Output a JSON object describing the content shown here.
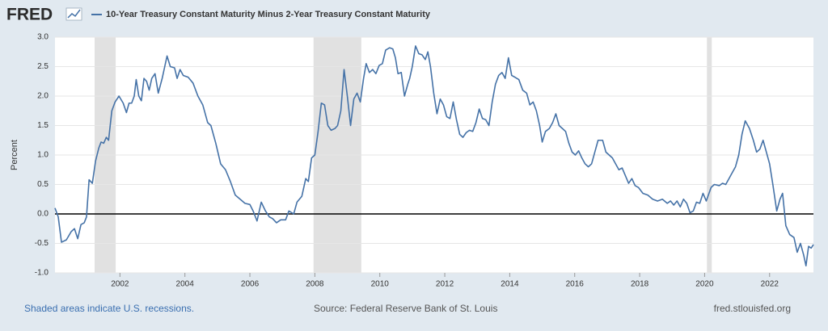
{
  "chart_data": {
    "type": "line",
    "logo": "FRED",
    "ylabel": "Percent",
    "footnote": "Shaded areas indicate U.S. recessions.",
    "source": "Source: Federal Reserve Bank of St. Louis",
    "website": "fred.stlouisfed.org",
    "xlim": [
      2000,
      2023.35
    ],
    "xticks": [
      2002,
      2004,
      2006,
      2008,
      2010,
      2012,
      2014,
      2016,
      2018,
      2020,
      2022
    ],
    "ylim": [
      -1,
      3
    ],
    "yticks": [
      {
        "value": 3,
        "label": "3.0"
      },
      2.5,
      {
        "value": 2,
        "label": "2.0"
      },
      1.5,
      {
        "value": 1,
        "label": "1.0"
      },
      0.5,
      {
        "value": 0,
        "label": "0.0"
      },
      -0.5,
      {
        "value": -1,
        "label": "-1.0"
      }
    ],
    "grid": true,
    "recessions": [
      [
        2001.22,
        2001.87
      ],
      [
        2007.96,
        2009.43
      ],
      [
        2020.07,
        2020.22
      ]
    ],
    "x": [
      2000.0,
      2000.1,
      2000.2,
      2000.35,
      2000.5,
      2000.6,
      2000.7,
      2000.8,
      2000.9,
      2000.97,
      2001.05,
      2001.15,
      2001.25,
      2001.35,
      2001.42,
      2001.5,
      2001.58,
      2001.65,
      2001.75,
      2001.85,
      2001.97,
      2002.1,
      2002.2,
      2002.28,
      2002.36,
      2002.44,
      2002.5,
      2002.58,
      2002.66,
      2002.74,
      2002.82,
      2002.9,
      2002.98,
      2003.08,
      2003.18,
      2003.3,
      2003.45,
      2003.55,
      2003.68,
      2003.76,
      2003.85,
      2003.95,
      2004.1,
      2004.25,
      2004.4,
      2004.55,
      2004.7,
      2004.8,
      2004.95,
      2005.1,
      2005.25,
      2005.4,
      2005.55,
      2005.7,
      2005.85,
      2006.0,
      2006.1,
      2006.22,
      2006.35,
      2006.48,
      2006.6,
      2006.7,
      2006.82,
      2006.95,
      2007.1,
      2007.2,
      2007.35,
      2007.45,
      2007.6,
      2007.72,
      2007.8,
      2007.9,
      2008.0,
      2008.1,
      2008.2,
      2008.3,
      2008.4,
      2008.5,
      2008.62,
      2008.7,
      2008.8,
      2008.9,
      2009.0,
      2009.1,
      2009.2,
      2009.3,
      2009.4,
      2009.5,
      2009.58,
      2009.68,
      2009.78,
      2009.88,
      2009.98,
      2010.08,
      2010.18,
      2010.3,
      2010.4,
      2010.48,
      2010.56,
      2010.66,
      2010.76,
      2010.86,
      2010.92,
      2011.0,
      2011.1,
      2011.2,
      2011.3,
      2011.4,
      2011.48,
      2011.56,
      2011.66,
      2011.76,
      2011.86,
      2011.96,
      2012.06,
      2012.16,
      2012.26,
      2012.36,
      2012.46,
      2012.56,
      2012.66,
      2012.76,
      2012.86,
      2012.96,
      2013.06,
      2013.16,
      2013.26,
      2013.36,
      2013.46,
      2013.56,
      2013.66,
      2013.76,
      2013.86,
      2013.96,
      2014.06,
      2014.16,
      2014.28,
      2014.4,
      2014.52,
      2014.62,
      2014.72,
      2014.82,
      2014.92,
      2015.0,
      2015.1,
      2015.22,
      2015.32,
      2015.42,
      2015.52,
      2015.62,
      2015.72,
      2015.82,
      2015.92,
      2016.02,
      2016.12,
      2016.22,
      2016.32,
      2016.42,
      2016.52,
      2016.62,
      2016.72,
      2016.86,
      2016.96,
      2017.06,
      2017.16,
      2017.26,
      2017.36,
      2017.46,
      2017.56,
      2017.66,
      2017.76,
      2017.86,
      2017.96,
      2018.1,
      2018.25,
      2018.4,
      2018.55,
      2018.7,
      2018.85,
      2018.95,
      2019.05,
      2019.15,
      2019.25,
      2019.35,
      2019.45,
      2019.55,
      2019.65,
      2019.75,
      2019.85,
      2019.95,
      2020.05,
      2020.2,
      2020.3,
      2020.45,
      2020.55,
      2020.65,
      2020.75,
      2020.85,
      2020.95,
      2021.05,
      2021.15,
      2021.25,
      2021.38,
      2021.5,
      2021.6,
      2021.7,
      2021.8,
      2021.9,
      2022.0,
      2022.1,
      2022.22,
      2022.32,
      2022.4,
      2022.5,
      2022.62,
      2022.75,
      2022.85,
      2022.95,
      2023.05,
      2023.12,
      2023.2,
      2023.28,
      2023.35
    ],
    "series": [
      {
        "name": "10-Year Treasury Constant Maturity Minus 2-Year Treasury Constant Maturity",
        "color": "#4572a7",
        "values": [
          0.1,
          -0.05,
          -0.48,
          -0.44,
          -0.3,
          -0.25,
          -0.42,
          -0.18,
          -0.15,
          -0.05,
          0.58,
          0.52,
          0.9,
          1.12,
          1.22,
          1.2,
          1.3,
          1.25,
          1.75,
          1.9,
          2.0,
          1.88,
          1.72,
          1.88,
          1.88,
          2.0,
          2.28,
          2.0,
          1.92,
          2.3,
          2.25,
          2.1,
          2.3,
          2.38,
          2.05,
          2.3,
          2.68,
          2.5,
          2.48,
          2.3,
          2.45,
          2.35,
          2.32,
          2.22,
          2.0,
          1.85,
          1.55,
          1.5,
          1.2,
          0.85,
          0.75,
          0.55,
          0.32,
          0.25,
          0.18,
          0.16,
          0.05,
          -0.12,
          0.2,
          0.05,
          -0.05,
          -0.08,
          -0.15,
          -0.1,
          -0.1,
          0.05,
          0.0,
          0.2,
          0.3,
          0.6,
          0.55,
          0.95,
          1.0,
          1.4,
          1.88,
          1.85,
          1.5,
          1.42,
          1.45,
          1.5,
          1.75,
          2.45,
          2.0,
          1.5,
          1.95,
          2.05,
          1.9,
          2.3,
          2.55,
          2.4,
          2.45,
          2.38,
          2.52,
          2.55,
          2.78,
          2.82,
          2.8,
          2.65,
          2.38,
          2.4,
          2.0,
          2.2,
          2.3,
          2.5,
          2.85,
          2.72,
          2.7,
          2.62,
          2.75,
          2.5,
          2.05,
          1.7,
          1.95,
          1.85,
          1.65,
          1.62,
          1.9,
          1.6,
          1.35,
          1.3,
          1.38,
          1.42,
          1.4,
          1.55,
          1.78,
          1.62,
          1.6,
          1.5,
          1.9,
          2.2,
          2.35,
          2.4,
          2.3,
          2.65,
          2.35,
          2.32,
          2.28,
          2.1,
          2.05,
          1.85,
          1.9,
          1.75,
          1.5,
          1.22,
          1.4,
          1.45,
          1.55,
          1.7,
          1.5,
          1.45,
          1.4,
          1.2,
          1.05,
          1.0,
          1.07,
          0.95,
          0.85,
          0.8,
          0.85,
          1.05,
          1.25,
          1.25,
          1.05,
          1.0,
          0.95,
          0.85,
          0.75,
          0.78,
          0.65,
          0.52,
          0.6,
          0.48,
          0.45,
          0.35,
          0.32,
          0.25,
          0.22,
          0.25,
          0.18,
          0.22,
          0.15,
          0.22,
          0.12,
          0.25,
          0.18,
          0.02,
          0.05,
          0.2,
          0.18,
          0.35,
          0.22,
          0.45,
          0.5,
          0.48,
          0.52,
          0.5,
          0.6,
          0.7,
          0.8,
          1.0,
          1.35,
          1.58,
          1.45,
          1.25,
          1.05,
          1.1,
          1.25,
          1.05,
          0.85,
          0.5,
          0.05,
          0.25,
          0.35,
          -0.2,
          -0.35,
          -0.4,
          -0.65,
          -0.5,
          -0.7,
          -0.88,
          -0.55,
          -0.58,
          -0.52
        ]
      }
    ]
  }
}
